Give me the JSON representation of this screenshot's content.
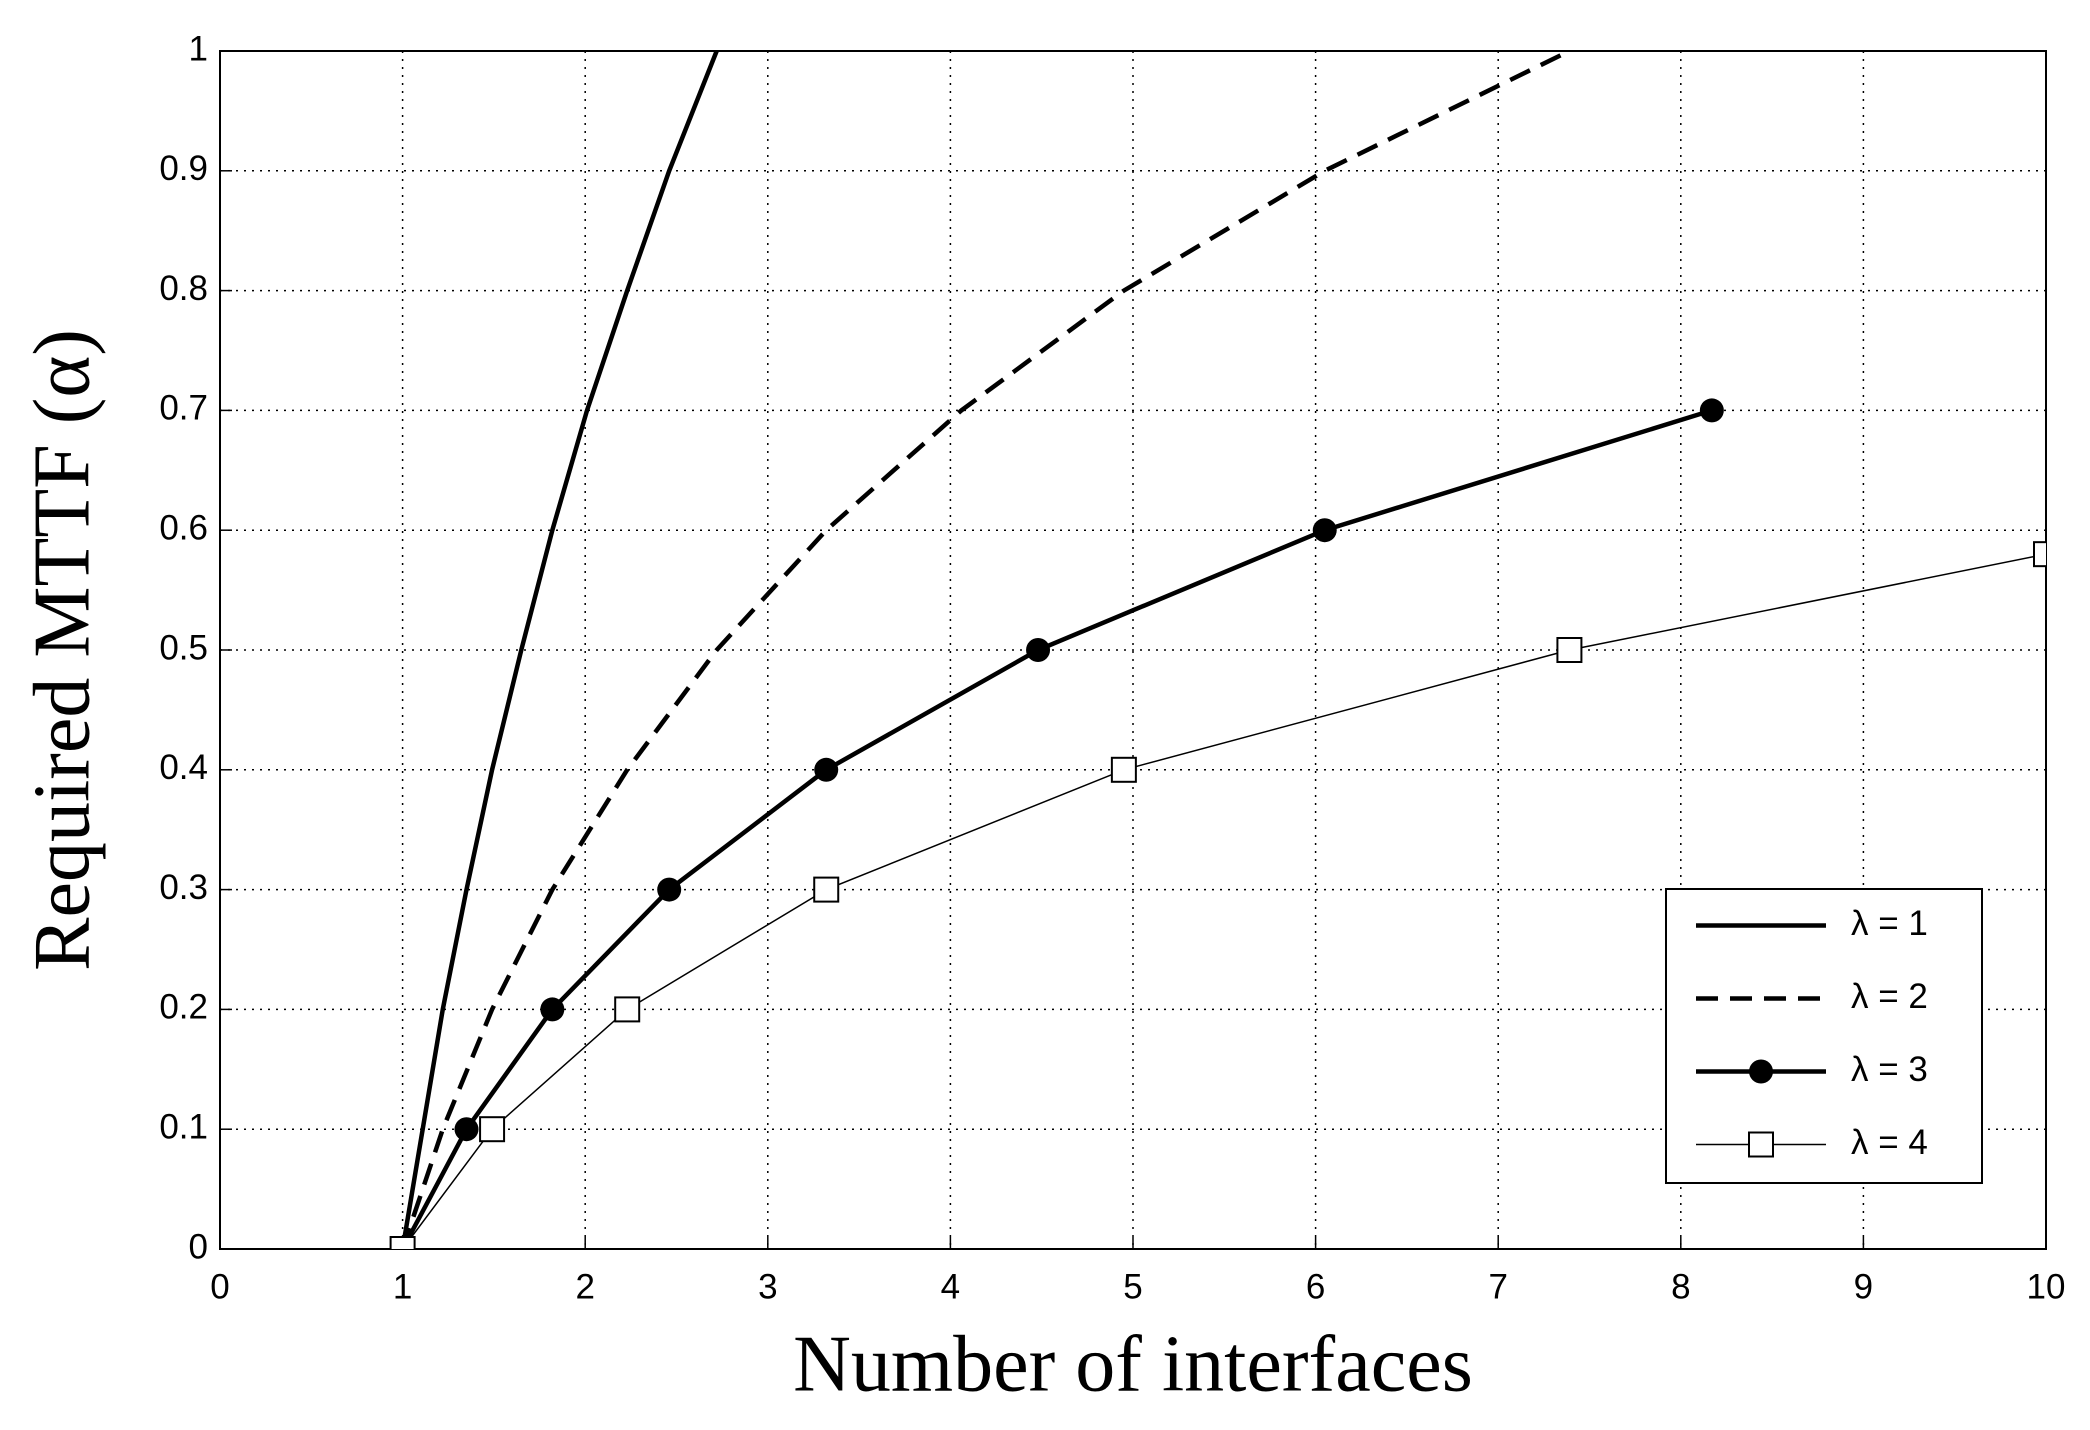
{
  "chart_data": {
    "type": "line",
    "xlabel": "Number of interfaces",
    "ylabel": "Required MTTF (α)",
    "xlim": [
      0,
      10
    ],
    "xticks": [
      0,
      1,
      2,
      3,
      4,
      5,
      6,
      7,
      8,
      9,
      10
    ],
    "ylim": [
      0,
      1
    ],
    "yticks": [
      0,
      0.1,
      0.2,
      0.3,
      0.4,
      0.5,
      0.6,
      0.7,
      0.8,
      0.9,
      1
    ],
    "grid": true,
    "legend": "lower right",
    "series": [
      {
        "name": "λ = 1",
        "color": "#000000",
        "style": "solid",
        "marker": "none",
        "x": [
          1,
          1.11,
          1.22,
          1.35,
          1.49,
          1.65,
          1.82,
          2.01,
          2.23,
          2.46,
          2.72
        ],
        "values": [
          0,
          0.1,
          0.2,
          0.3,
          0.4,
          0.5,
          0.6,
          0.7,
          0.8,
          0.9,
          1
        ]
      },
      {
        "name": "λ = 2",
        "color": "#000000",
        "style": "dashed",
        "marker": "none",
        "x": [
          1,
          1.22,
          1.49,
          1.82,
          2.23,
          2.72,
          3.32,
          4.06,
          4.95,
          6.05,
          7.39
        ],
        "values": [
          0,
          0.1,
          0.2,
          0.3,
          0.4,
          0.5,
          0.6,
          0.7,
          0.8,
          0.9,
          1
        ]
      },
      {
        "name": "λ = 3",
        "color": "#000000",
        "style": "solid",
        "marker": "circle",
        "x": [
          1,
          1.35,
          1.82,
          2.46,
          3.32,
          4.48,
          6.05,
          8.17
        ],
        "values": [
          0,
          0.1,
          0.2,
          0.3,
          0.4,
          0.5,
          0.6,
          0.7
        ]
      },
      {
        "name": "λ = 4",
        "color": "#000000",
        "style": "thin",
        "marker": "square",
        "x": [
          1,
          1.49,
          2.23,
          3.32,
          4.95,
          7.39,
          10
        ],
        "values": [
          0,
          0.1,
          0.2,
          0.3,
          0.4,
          0.5,
          0.58
        ]
      }
    ]
  }
}
